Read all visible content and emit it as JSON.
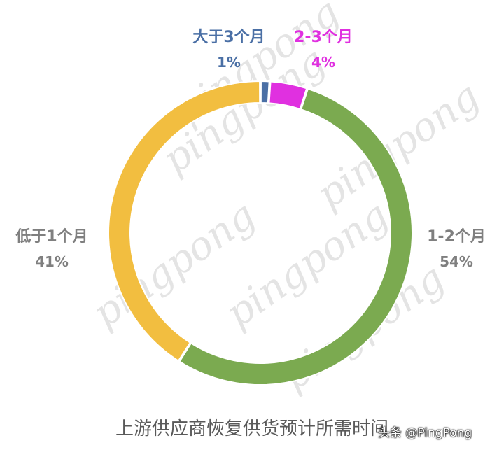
{
  "chart_data": {
    "type": "pie",
    "title": "上游供应商恢复供货预计所需时间",
    "donut": true,
    "slices": [
      {
        "name": "大于3个月",
        "value": 1,
        "value_label": "1%",
        "color": "#4A6FA5",
        "label_color": "#4A6FA5"
      },
      {
        "name": "2-3个月",
        "value": 4,
        "value_label": "4%",
        "color": "#E030E0",
        "label_color": "#E030E0"
      },
      {
        "name": "1-2个月",
        "value": 54,
        "value_label": "54%",
        "color": "#7BAA50",
        "label_color": "#7F7F7F"
      },
      {
        "name": "低于1个月",
        "value": 41,
        "value_label": "41%",
        "color": "#F2BE40",
        "label_color": "#7F7F7F"
      }
    ]
  },
  "watermark": "pingpong",
  "source_tag": "头条 @PingPong"
}
